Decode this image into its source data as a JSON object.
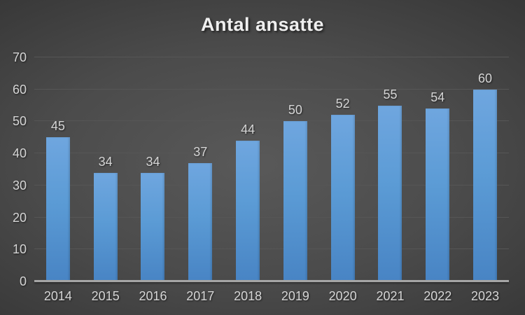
{
  "title": "Antal ansatte",
  "colors": {
    "background_center": "#595959",
    "background_edge": "#242424",
    "bar_top": "#6fa6df",
    "bar_bottom": "#4884c4",
    "gridline": "#565656",
    "axis_line": "#a6a6a6",
    "label_text": "#d6d6d6",
    "title_text": "#efefef"
  },
  "chart_data": {
    "type": "bar",
    "title": "Antal ansatte",
    "categories": [
      "2014",
      "2015",
      "2016",
      "2017",
      "2018",
      "2019",
      "2020",
      "2021",
      "2022",
      "2023"
    ],
    "values": [
      45,
      34,
      34,
      37,
      44,
      50,
      52,
      55,
      54,
      60
    ],
    "data_labels": true,
    "xlabel": "",
    "ylabel": "",
    "ylim": [
      0,
      70
    ],
    "y_ticks": [
      0,
      10,
      20,
      30,
      40,
      50,
      60,
      70
    ],
    "grid": "horizontal",
    "legend": "none"
  }
}
